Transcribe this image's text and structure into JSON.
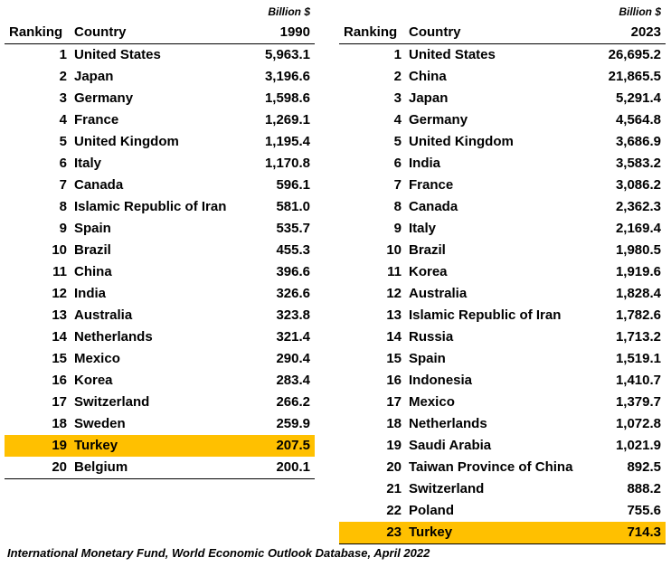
{
  "table_1990": {
    "unit": "Billion $",
    "headers": {
      "rank": "Ranking",
      "country": "Country",
      "value": "1990"
    },
    "rows": [
      {
        "rank": "1",
        "country": "United States",
        "value": "5,963.1"
      },
      {
        "rank": "2",
        "country": "Japan",
        "value": "3,196.6"
      },
      {
        "rank": "3",
        "country": "Germany",
        "value": "1,598.6"
      },
      {
        "rank": "4",
        "country": "France",
        "value": "1,269.1"
      },
      {
        "rank": "5",
        "country": "United Kingdom",
        "value": "1,195.4"
      },
      {
        "rank": "6",
        "country": "Italy",
        "value": "1,170.8"
      },
      {
        "rank": "7",
        "country": "Canada",
        "value": "596.1"
      },
      {
        "rank": "8",
        "country": "Islamic Republic of Iran",
        "value": "581.0"
      },
      {
        "rank": "9",
        "country": "Spain",
        "value": "535.7"
      },
      {
        "rank": "10",
        "country": "Brazil",
        "value": "455.3"
      },
      {
        "rank": "11",
        "country": "China",
        "value": "396.6"
      },
      {
        "rank": "12",
        "country": "India",
        "value": "326.6"
      },
      {
        "rank": "13",
        "country": "Australia",
        "value": "323.8"
      },
      {
        "rank": "14",
        "country": "Netherlands",
        "value": "321.4"
      },
      {
        "rank": "15",
        "country": "Mexico",
        "value": "290.4"
      },
      {
        "rank": "16",
        "country": "Korea",
        "value": "283.4"
      },
      {
        "rank": "17",
        "country": "Switzerland",
        "value": "266.2"
      },
      {
        "rank": "18",
        "country": "Sweden",
        "value": "259.9"
      },
      {
        "rank": "19",
        "country": "Turkey",
        "value": "207.5",
        "highlight": true
      },
      {
        "rank": "20",
        "country": "Belgium",
        "value": "200.1"
      }
    ]
  },
  "table_2023": {
    "unit": "Billion $",
    "headers": {
      "rank": "Ranking",
      "country": "Country",
      "value": "2023"
    },
    "rows": [
      {
        "rank": "1",
        "country": "United States",
        "value": "26,695.2"
      },
      {
        "rank": "2",
        "country": "China",
        "value": "21,865.5"
      },
      {
        "rank": "3",
        "country": "Japan",
        "value": "5,291.4"
      },
      {
        "rank": "4",
        "country": "Germany",
        "value": "4,564.8"
      },
      {
        "rank": "5",
        "country": "United Kingdom",
        "value": "3,686.9"
      },
      {
        "rank": "6",
        "country": "India",
        "value": "3,583.2"
      },
      {
        "rank": "7",
        "country": "France",
        "value": "3,086.2"
      },
      {
        "rank": "8",
        "country": "Canada",
        "value": "2,362.3"
      },
      {
        "rank": "9",
        "country": "Italy",
        "value": "2,169.4"
      },
      {
        "rank": "10",
        "country": "Brazil",
        "value": "1,980.5"
      },
      {
        "rank": "11",
        "country": "Korea",
        "value": "1,919.6"
      },
      {
        "rank": "12",
        "country": "Australia",
        "value": "1,828.4"
      },
      {
        "rank": "13",
        "country": "Islamic Republic of Iran",
        "value": "1,782.6"
      },
      {
        "rank": "14",
        "country": "Russia",
        "value": "1,713.2"
      },
      {
        "rank": "15",
        "country": "Spain",
        "value": "1,519.1"
      },
      {
        "rank": "16",
        "country": "Indonesia",
        "value": "1,410.7"
      },
      {
        "rank": "17",
        "country": "Mexico",
        "value": "1,379.7"
      },
      {
        "rank": "18",
        "country": "Netherlands",
        "value": "1,072.8"
      },
      {
        "rank": "19",
        "country": "Saudi Arabia",
        "value": "1,021.9"
      },
      {
        "rank": "20",
        "country": "Taiwan Province of China",
        "value": "892.5"
      },
      {
        "rank": "21",
        "country": "Switzerland",
        "value": "888.2"
      },
      {
        "rank": "22",
        "country": "Poland",
        "value": "755.6"
      },
      {
        "rank": "23",
        "country": "Turkey",
        "value": "714.3",
        "highlight": true
      }
    ]
  },
  "highlight_color": "#ffc000",
  "source_note": "International Monetary Fund, World Economic Outlook Database, April 2022"
}
